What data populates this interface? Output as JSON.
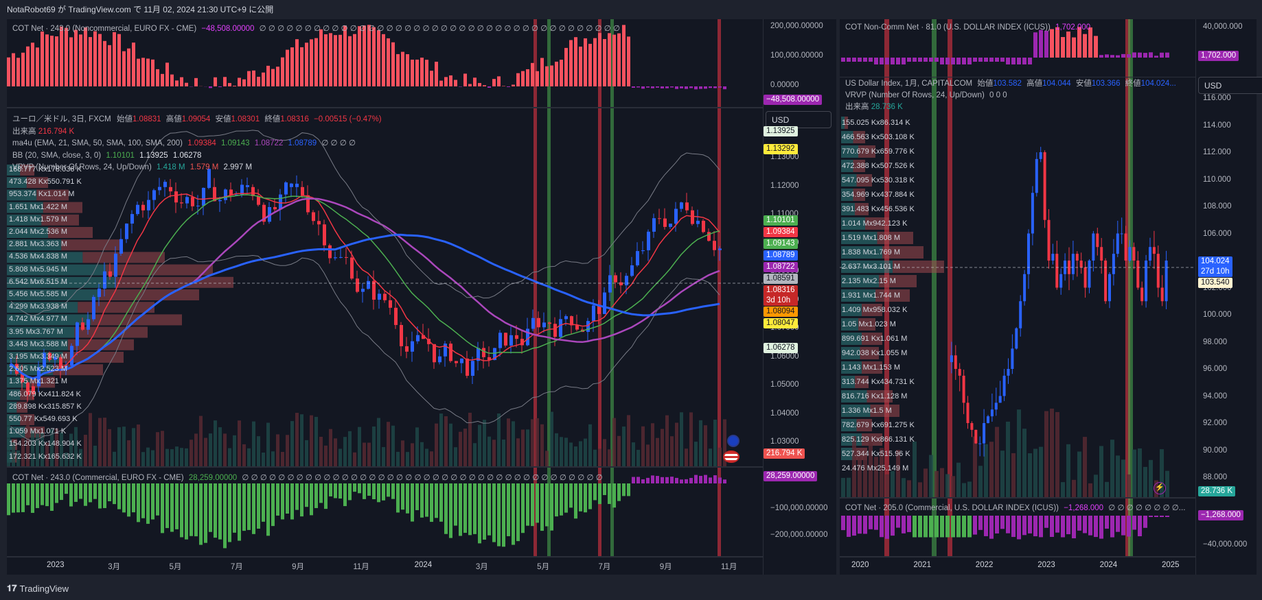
{
  "header": {
    "published": "NotaRobot69 が TradingView.com で 11月 02, 2024 21:30 UTC+9 に公開"
  },
  "brand": {
    "name": "TradingView"
  },
  "left": {
    "cot_top": {
      "title": "COT Net · 243.0 (Noncommercial, EURO FX - CME)",
      "value": "−48,508.00000",
      "dots": "∅ ∅ ∅ ∅ ∅ ∅ ∅ ∅ ∅ ∅ ∅ ∅ ∅ ∅ ∅ ∅ ∅ ∅ ∅ ∅ ∅ ∅ ∅ ∅ ∅ ∅ ∅ ∅ ∅ ∅ ∅ ∅ ∅ ∅ ∅ ∅ ∅ ∅ ∅ ∅",
      "scale": [
        "200,000.00000",
        "100,000.00000",
        "0.00000"
      ],
      "tag": "−48,508.00000"
    },
    "main": {
      "symbol": "ユーロ／米ドル, 3日, FXCM",
      "o_label": "始値",
      "o": "1.08831",
      "h_label": "高値",
      "h": "1.09054",
      "l_label": "安値",
      "l": "1.08301",
      "c_label": "終値",
      "c": "1.08316",
      "chg": "−0.00515 (−0.47%)",
      "vol_label": "出来高",
      "vol": "216.794 K",
      "ma_label": "ma4u (EMA, 21, SMA, 50, SMA, 100, SMA, 200)",
      "ma1": "1.09384",
      "ma2": "1.09143",
      "ma3": "1.08722",
      "ma4": "1.08789",
      "ma_dots": "∅ ∅ ∅ ∅",
      "bb_label": "BB (20, SMA, close, 3, 0)",
      "bb1": "1.10101",
      "bb2": "1.13925",
      "bb3": "1.06278",
      "vrvp_label": "VRVP (Number Of Rows, 24, Up/Down)",
      "vrvp1": "1.418 M",
      "vrvp2": "1.579 M",
      "vrvp3": "2.997 M",
      "currency": "USD",
      "scale": [
        "1.13000",
        "1.12000",
        "1.11000",
        "1.10000",
        "1.09000",
        "1.08000",
        "1.07000",
        "1.06000",
        "1.05000",
        "1.04000",
        "1.03000"
      ],
      "tags": {
        "bbup": "1.13925",
        "y": "1.13292",
        "g": "1.10101",
        "r": "1.09384",
        "g2": "1.09143",
        "b": "1.08789",
        "p": "1.08722",
        "gray": "1.08591",
        "close": "1.08316",
        "countdown": "3d 10h",
        "o": "1.08094",
        "y2": "1.08047",
        "bblow": "1.06278",
        "vol": "216.794 K"
      },
      "vp_rows": [
        "168.777 Kx178.036 K",
        "473.428 Kx550.791 K",
        "953.374 Kx1.014 M",
        "1.651 Mx1.422 M",
        "1.418 Mx1.579 M",
        "2.044 Mx2.536 M",
        "2.881 Mx3.363 M",
        "4.536 Mx4.838 M",
        "5.808 Mx5.945 M",
        "6.542 Mx6.515 M",
        "5.456 Mx5.585 M",
        "4.299 Mx3.938 M",
        "4.742 Mx4.977 M",
        "3.95 Mx3.767 M",
        "3.443 Mx3.588 M",
        "3.195 Mx3.349 M",
        "2.605 Mx2.523 M",
        "1.375 Mx1.321 M",
        "486.079 Kx411.824 K",
        "289.898 Kx315.857 K",
        "550.77 Kx549.693 K",
        "1.059 Mx1.071 K",
        "154.203 Kx148.904 K",
        "172.321 Kx165.632 K"
      ]
    },
    "cot_bottom": {
      "title": "COT Net · 243.0 (Commercial, EURO FX - CME)",
      "value": "28,259.00000",
      "dots": "∅ ∅ ∅ ∅ ∅ ∅ ∅ ∅ ∅ ∅ ∅ ∅ ∅ ∅ ∅ ∅ ∅ ∅ ∅ ∅ ∅ ∅ ∅ ∅ ∅ ∅ ∅ ∅ ∅ ∅ ∅ ∅ ∅ ∅ ∅ ∅ ∅ ∅ ∅ ∅",
      "scale": [
        "−100,000.00000",
        "−200,000.00000"
      ],
      "tag": "28,259.00000"
    },
    "time_axis": [
      "2023",
      "3月",
      "5月",
      "7月",
      "9月",
      "11月",
      "2024",
      "3月",
      "5月",
      "7月",
      "9月",
      "11月"
    ]
  },
  "right": {
    "cot_top": {
      "title": "COT Non-Comm Net · 81.0 (U.S. DOLLAR INDEX (ICUS))",
      "value": "1,702.000",
      "scale": [
        "40,000.000"
      ],
      "tag": "1,702.000"
    },
    "main": {
      "symbol": "US Dollar Index, 1月, CAPITALCOM",
      "o_label": "始値",
      "o": "103.582",
      "h_label": "高値",
      "h": "104.044",
      "l_label": "安値",
      "l": "103.366",
      "c_label": "終値",
      "c": "104.024...",
      "vrvp_label": "VRVP (Number Of Rows, 24, Up/Down)",
      "vrvp_vals": "0  0  0",
      "vol_label": "出来高",
      "vol": "28.736 K",
      "currency": "USD",
      "scale": [
        "116.000",
        "114.000",
        "112.000",
        "110.000",
        "108.000",
        "106.000",
        "104.000",
        "102.000",
        "100.000",
        "98.000",
        "96.000",
        "94.000",
        "92.000",
        "90.000",
        "88.000"
      ],
      "tags": {
        "price": "104.024",
        "countdown": "27d 10h",
        "prev": "103.540",
        "vol": "28.736 K"
      },
      "vp_rows": [
        "155.025 Kx86.314 K",
        "466.563 Kx503.108 K",
        "770.679 Kx659.776 K",
        "472.388 Kx507.526 K",
        "547.095 Kx530.318 K",
        "354.969 Kx437.884 K",
        "391.483 Kx456.536 K",
        "1.014 Mx942.123 K",
        "1.519 Mx1.808 M",
        "1.838 Mx1.769 M",
        "2.637 Mx3.101 M",
        "2.135 Mx2.15 M",
        "1.931 Mx1.744 M",
        "1.409 Mx958.032 K",
        "1.05 Mx1.023 M",
        "899.691 Kx1.061 M",
        "942.038 Kx1.055 M",
        "1.143 Mx1.153 M",
        "313.744 Kx434.731 K",
        "816.716 Kx1.128 M",
        "1.336 Mx1.5 M",
        "782.679 Kx691.275 K",
        "825.129 Kx866.131 K",
        "527.344 Kx515.96 K",
        "24.476 Mx25.149 M"
      ]
    },
    "cot_bottom": {
      "title": "COT Net · 205.0 (Commercial, U.S. DOLLAR INDEX (ICUS))",
      "value": "−1,268.000",
      "dots": "∅ ∅ ∅ ∅ ∅ ∅ ∅ ∅...",
      "scale": [
        "−40,000.000"
      ],
      "tag": "−1,268.000"
    },
    "time_axis": [
      "2020",
      "2021",
      "2022",
      "2023",
      "2024",
      "2025"
    ]
  },
  "colors": {
    "bg": "#131722",
    "up": "#2962ff",
    "down": "#f23645",
    "green": "#4caf50",
    "purple": "#9c27b0",
    "red_hist": "#f7525f",
    "green_hist": "#4caf50"
  }
}
